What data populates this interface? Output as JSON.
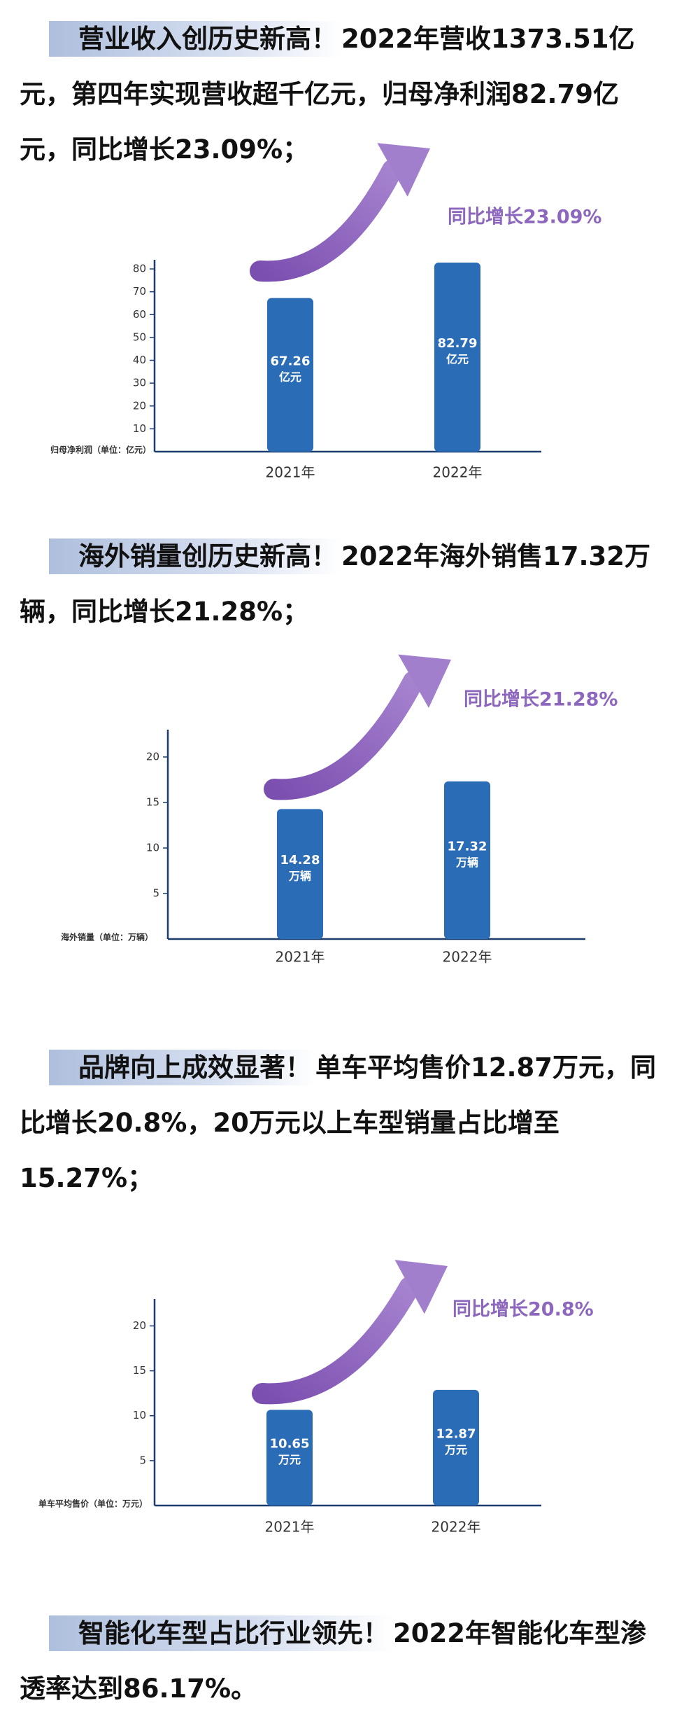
{
  "sections": [
    {
      "highlight": "营业收入创历史新高！",
      "text": "2022年营收1373.51亿元，第四年实现营收超千亿元，归母净利润82.79亿元，同比增长23.09%；"
    },
    {
      "highlight": "海外销量创历史新高！",
      "text": "2022年海外销售17.32万辆，同比增长21.28%；"
    },
    {
      "highlight": "品牌向上成效显著！",
      "text": "单车平均售价12.87万元，同比增长20.8%，20万元以上车型销量占比增至15.27%；"
    },
    {
      "highlight": "智能化车型占比行业领先！",
      "text": "2022年智能化车型渗透率达到86.17%。"
    }
  ],
  "chart_data": [
    {
      "type": "bar",
      "y_label": "归母净利润（单位：亿元）",
      "annotation": "同比增长23.09%",
      "categories": [
        "2021年",
        "2022年"
      ],
      "values": [
        67.26,
        82.79
      ],
      "value_unit": "亿元",
      "color": "#2a6cb6",
      "ylim": [
        0,
        84
      ],
      "yticks": [
        10,
        20,
        30,
        40,
        50,
        60,
        70,
        80
      ]
    },
    {
      "type": "bar",
      "y_label": "海外销量（单位：万辆）",
      "annotation": "同比增长21.28%",
      "categories": [
        "2021年",
        "2022年"
      ],
      "values": [
        14.28,
        17.32
      ],
      "value_unit": "万辆",
      "color": "#2a6cb6",
      "ylim": [
        0,
        23
      ],
      "yticks": [
        5,
        10,
        15,
        20
      ]
    },
    {
      "type": "bar",
      "y_label": "单车平均售价（单位：万元）",
      "annotation": "同比增长20.8%",
      "categories": [
        "2021年",
        "2022年"
      ],
      "values": [
        10.65,
        12.87
      ],
      "value_unit": "万元",
      "color": "#2a6cb6",
      "ylim": [
        0,
        23
      ],
      "yticks": [
        5,
        10,
        15,
        20
      ]
    }
  ]
}
